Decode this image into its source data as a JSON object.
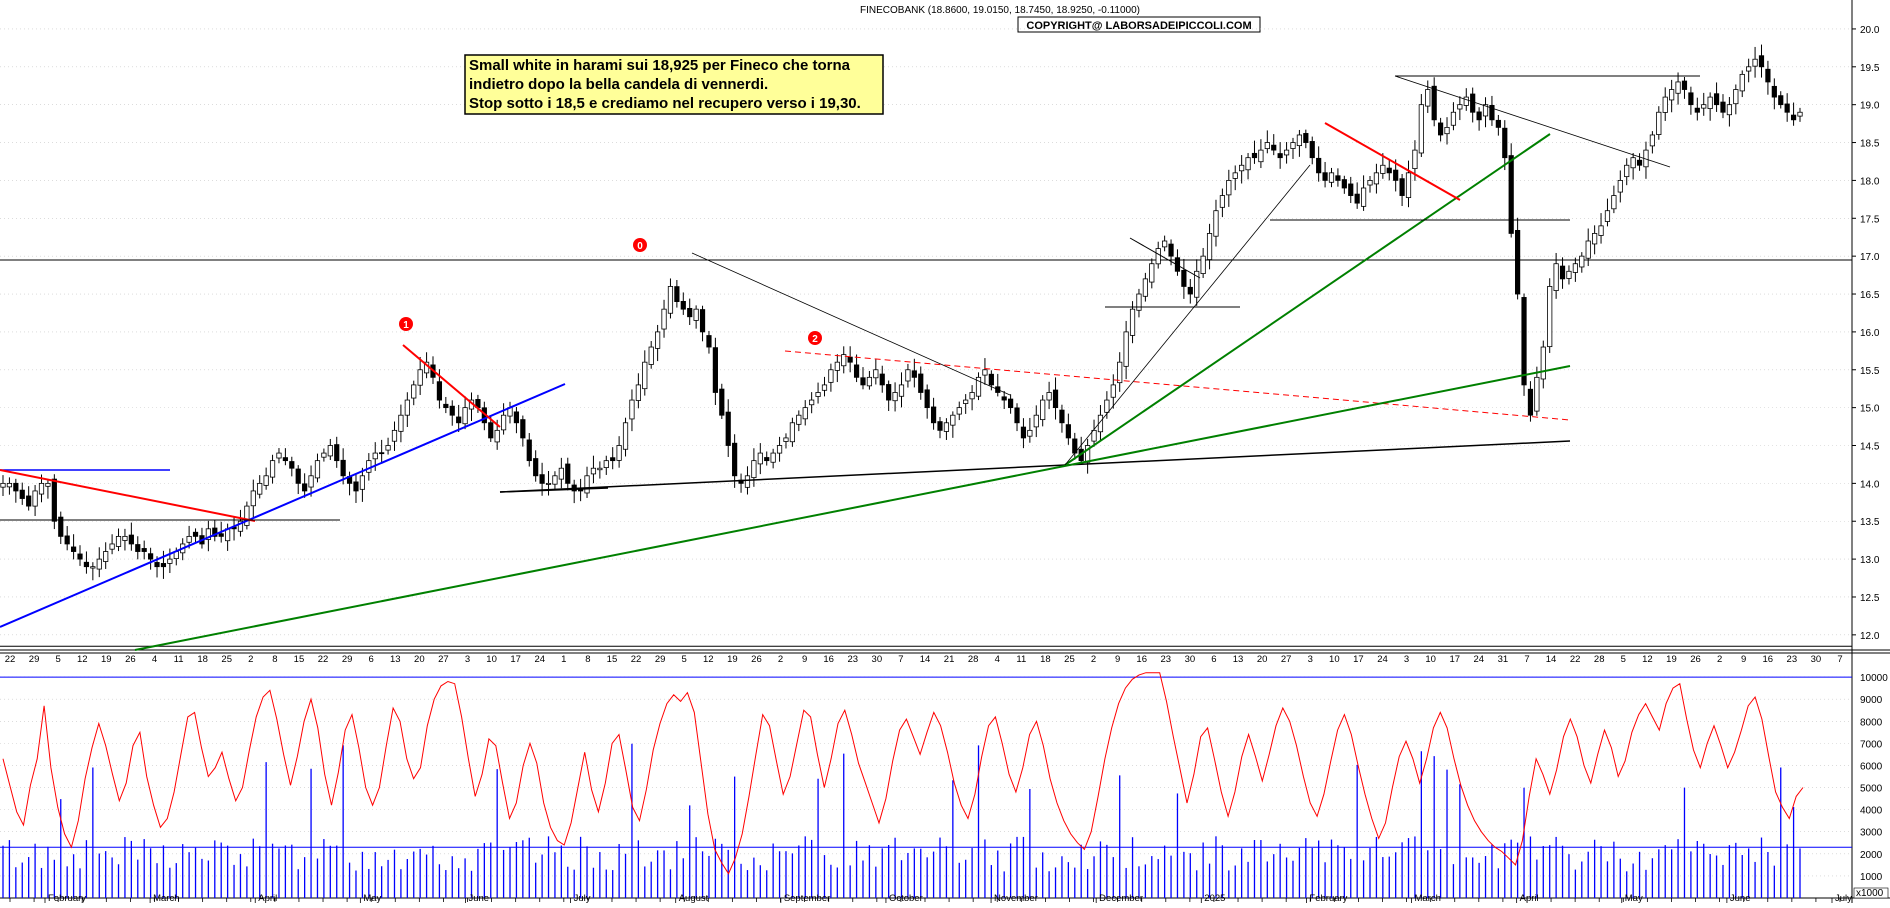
{
  "header": {
    "title": "FINECOBANK (18.8600, 19.0150, 18.7450, 18.9250, -0.11000)",
    "copyright": "COPYRIGHT@ LABORSADEIPICCOLI.COM"
  },
  "annotation": {
    "lines": [
      "Small white in harami sui 18,925 per Fineco che torna",
      "indietro dopo la bella candela di vennerdi.",
      "Stop sotto i 18,5 e crediamo nel recupero verso i 19,30."
    ],
    "background": "#ffff99"
  },
  "markers": [
    "1",
    "0",
    "2"
  ],
  "colors": {
    "candle": "#000000",
    "trend_red": "#ff0000",
    "trend_blue": "#0000ff",
    "trend_green": "#008000",
    "oscillator": "#ff0000",
    "volume": "#0000ff",
    "grid": "#c8c8c8"
  },
  "chart_data": {
    "type": "candlestick",
    "price_axis": {
      "ticks": [
        "12.0",
        "12.5",
        "13.0",
        "13.5",
        "14.0",
        "14.5",
        "15.0",
        "15.5",
        "16.0",
        "16.5",
        "17.0",
        "17.5",
        "18.0",
        "18.5",
        "19.0",
        "19.5",
        "20.0"
      ],
      "range": [
        11.8,
        20.25
      ],
      "position": "right"
    },
    "indicator_axis": {
      "ticks": [
        "1000",
        "2000",
        "3000",
        "4000",
        "5000",
        "6000",
        "7000",
        "8000",
        "9000",
        "10000"
      ],
      "range": [
        0,
        11000
      ],
      "unit": "x1000"
    },
    "x_day_ticks": [
      "22",
      "29",
      "5",
      "12",
      "19",
      "26",
      "4",
      "11",
      "18",
      "25",
      "2",
      "8",
      "15",
      "22",
      "29",
      "6",
      "13",
      "20",
      "27",
      "3",
      "10",
      "17",
      "24",
      "1",
      "8",
      "15",
      "22",
      "29",
      "5",
      "12",
      "19",
      "26",
      "2",
      "9",
      "16",
      "23",
      "30",
      "7",
      "14",
      "21",
      "28",
      "4",
      "11",
      "18",
      "25",
      "2",
      "9",
      "16",
      "23",
      "30",
      "6",
      "13",
      "20",
      "27",
      "3",
      "10",
      "17",
      "24",
      "3",
      "10",
      "17",
      "24",
      "31",
      "7",
      "14",
      "22",
      "28",
      "5",
      "12",
      "19",
      "26",
      "2",
      "9",
      "16",
      "23",
      "30",
      "7"
    ],
    "x_month_labels": [
      "February",
      "March",
      "April",
      "May",
      "June",
      "July",
      "August",
      "September",
      "October",
      "November",
      "December",
      "2025",
      "February",
      "March",
      "April",
      "May",
      "June",
      "July"
    ],
    "closes": [
      14.0,
      14.0,
      13.9,
      13.8,
      13.7,
      13.9,
      14.0,
      14.0,
      13.5,
      13.3,
      13.2,
      13.1,
      13.0,
      12.9,
      12.9,
      13.0,
      13.1,
      13.2,
      13.3,
      13.3,
      13.2,
      13.1,
      13.1,
      13.0,
      12.9,
      12.9,
      13.0,
      13.1,
      13.2,
      13.3,
      13.3,
      13.2,
      13.4,
      13.3,
      13.3,
      13.4,
      13.4,
      13.5,
      13.7,
      13.9,
      14.0,
      14.1,
      14.3,
      14.4,
      14.3,
      14.2,
      14.0,
      13.9,
      14.1,
      14.3,
      14.4,
      14.5,
      14.3,
      14.1,
      14.0,
      13.9,
      14.1,
      14.3,
      14.4,
      14.4,
      14.5,
      14.7,
      14.9,
      15.1,
      15.3,
      15.5,
      15.6,
      15.4,
      15.1,
      15.0,
      14.9,
      14.8,
      15.0,
      15.1,
      15.0,
      14.8,
      14.6,
      14.7,
      14.9,
      15.0,
      14.8,
      14.6,
      14.3,
      14.1,
      14.0,
      14.0,
      14.1,
      14.2,
      14.0,
      13.9,
      13.9,
      14.1,
      14.2,
      14.2,
      14.3,
      14.3,
      14.5,
      14.8,
      15.1,
      15.3,
      15.6,
      15.8,
      16.0,
      16.3,
      16.6,
      16.4,
      16.3,
      16.2,
      16.3,
      16.0,
      15.8,
      15.2,
      14.9,
      14.5,
      14.1,
      14.0,
      14.1,
      14.3,
      14.4,
      14.3,
      14.4,
      14.5,
      14.6,
      14.8,
      14.9,
      15.0,
      15.1,
      15.2,
      15.3,
      15.5,
      15.6,
      15.7,
      15.6,
      15.4,
      15.3,
      15.4,
      15.5,
      15.3,
      15.1,
      15.2,
      15.3,
      15.5,
      15.4,
      15.2,
      15.0,
      14.8,
      14.7,
      14.8,
      14.9,
      15.0,
      15.1,
      15.2,
      15.4,
      15.5,
      15.3,
      15.2,
      15.1,
      15.0,
      14.8,
      14.6,
      14.7,
      14.9,
      15.1,
      15.2,
      15.0,
      14.8,
      14.6,
      14.4,
      14.3,
      14.5,
      14.7,
      14.9,
      15.1,
      15.3,
      15.6,
      16.0,
      16.3,
      16.5,
      16.7,
      16.9,
      17.1,
      17.2,
      17.0,
      16.8,
      16.6,
      16.5,
      16.8,
      17.0,
      17.3,
      17.6,
      17.8,
      18.0,
      18.1,
      18.2,
      18.3,
      18.3,
      18.4,
      18.5,
      18.4,
      18.3,
      18.4,
      18.5,
      18.6,
      18.5,
      18.3,
      18.1,
      18.0,
      18.1,
      18.0,
      17.9,
      17.8,
      17.7,
      17.9,
      18.0,
      18.1,
      18.2,
      18.1,
      18.0,
      17.8,
      18.1,
      18.4,
      19.0,
      19.2,
      18.8,
      18.6,
      18.7,
      18.9,
      19.0,
      19.1,
      18.9,
      18.8,
      19.0,
      18.8,
      18.7,
      18.3,
      17.3,
      16.5,
      15.3,
      14.9,
      15.4,
      15.8,
      16.6,
      16.9,
      16.7,
      16.8,
      16.9,
      17.0,
      17.2,
      17.3,
      17.4,
      17.6,
      17.8,
      18.0,
      18.2,
      18.3,
      18.2,
      18.4,
      18.6,
      18.9,
      19.1,
      19.2,
      19.3,
      19.2,
      19.0,
      18.9,
      19.0,
      19.1,
      19.0,
      18.9,
      19.0,
      19.2,
      19.4,
      19.5,
      19.6,
      19.5,
      19.3,
      19.1,
      19.0,
      18.9,
      18.8,
      18.9
    ],
    "oscillator": [
      6300,
      5100,
      3900,
      3300,
      5100,
      6300,
      8700,
      5900,
      4100,
      2900,
      2300,
      3500,
      5400,
      6800,
      7900,
      6900,
      5600,
      4400,
      5200,
      6900,
      7500,
      5500,
      4200,
      3200,
      3600,
      4800,
      6500,
      8200,
      8400,
      6800,
      5500,
      5900,
      6600,
      5400,
      4400,
      5000,
      6700,
      8200,
      9100,
      9400,
      8100,
      6500,
      5100,
      6400,
      8000,
      9000,
      7700,
      5600,
      4200,
      5700,
      7600,
      8300,
      6800,
      5000,
      4200,
      5000,
      6900,
      8600,
      8000,
      6300,
      5400,
      5900,
      7800,
      9000,
      9600,
      9800,
      9700,
      8200,
      6300,
      4600,
      5600,
      7200,
      6900,
      5200,
      3600,
      4300,
      6000,
      7000,
      6100,
      4300,
      3200,
      2600,
      2400,
      3400,
      5000,
      6600,
      4900,
      3900,
      5200,
      7000,
      7400,
      5800,
      4100,
      3500,
      4900,
      6700,
      7900,
      8800,
      9200,
      8900,
      9300,
      8400,
      6100,
      3800,
      2200,
      1600,
      1100,
      1800,
      2900,
      4600,
      6500,
      8300,
      7800,
      6200,
      4700,
      5500,
      7000,
      8500,
      8200,
      6500,
      5000,
      6300,
      7900,
      8500,
      7400,
      6100,
      5200,
      4300,
      3400,
      4500,
      6200,
      7600,
      8100,
      7300,
      6500,
      7500,
      8400,
      7800,
      6600,
      5200,
      4200,
      3600,
      4700,
      6400,
      7800,
      8200,
      7000,
      5600,
      4800,
      5900,
      7400,
      8000,
      6900,
      5400,
      4300,
      3500,
      2900,
      2500,
      2200,
      3000,
      4600,
      6300,
      7700,
      8800,
      9500,
      9900,
      10100,
      10200,
      10200,
      10200,
      8900,
      7300,
      5800,
      4300,
      5600,
      7300,
      7700,
      6300,
      4800,
      3700,
      4800,
      6400,
      7400,
      6400,
      5300,
      6500,
      7800,
      8600,
      8000,
      6900,
      5500,
      4300,
      3700,
      4700,
      6200,
      7600,
      8300,
      7400,
      6000,
      4700,
      3600,
      2700,
      3400,
      5000,
      6400,
      7100,
      6300,
      5200,
      6300,
      7700,
      8400,
      7700,
      6300,
      5100,
      4200,
      3500,
      3000,
      2600,
      2300,
      2100,
      1800,
      1500,
      2600,
      4600,
      6300,
      5600,
      4700,
      5800,
      7300,
      8100,
      7300,
      6000,
      5200,
      6500,
      7600,
      6800,
      5500,
      6200,
      7500,
      8300,
      8800,
      8200,
      7600,
      8800,
      9500,
      9700,
      8100,
      6700,
      5900,
      7000,
      7800,
      6900,
      5900,
      6600,
      7600,
      8700,
      9100,
      8100,
      6400,
      4800,
      4100,
      3600,
      4600,
      5000
    ]
  }
}
